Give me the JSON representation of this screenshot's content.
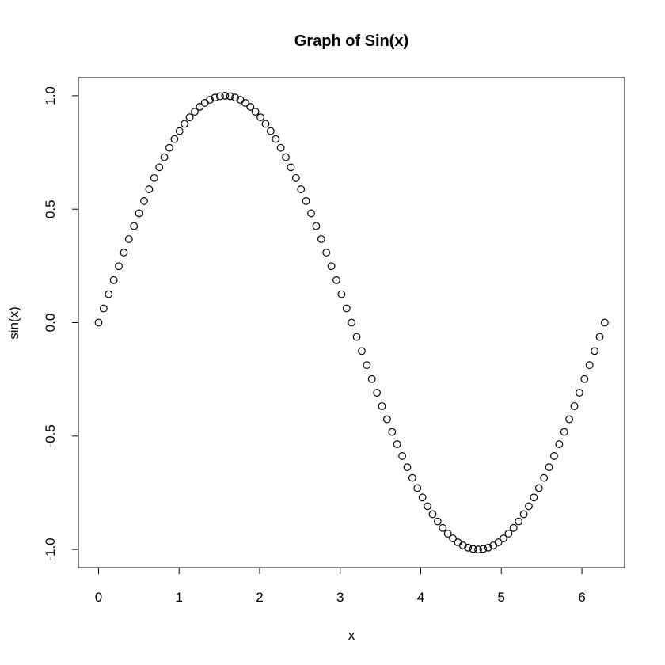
{
  "chart_data": {
    "type": "scatter",
    "title": "Graph of Sin(x)",
    "xlabel": "x",
    "ylabel": "sin(x)",
    "xlim": [
      -0.25,
      6.53
    ],
    "ylim": [
      -1.08,
      1.08
    ],
    "grid": false,
    "legend": "none",
    "x_ticks": [
      {
        "value": 0,
        "label": "0"
      },
      {
        "value": 1,
        "label": "1"
      },
      {
        "value": 2,
        "label": "2"
      },
      {
        "value": 3,
        "label": "3"
      },
      {
        "value": 4,
        "label": "4"
      },
      {
        "value": 5,
        "label": "5"
      },
      {
        "value": 6,
        "label": "6"
      }
    ],
    "y_ticks": [
      {
        "value": -1.0,
        "label": "-1.0"
      },
      {
        "value": -0.5,
        "label": "-0.5"
      },
      {
        "value": 0.0,
        "label": "0.0"
      },
      {
        "value": 0.5,
        "label": "0.5"
      },
      {
        "value": 1.0,
        "label": "1.0"
      }
    ],
    "series": [
      {
        "x": [
          0,
          0.0628,
          0.1257,
          0.1885,
          0.2513,
          0.3142,
          0.377,
          0.4398,
          0.5027,
          0.5655,
          0.6283,
          0.6912,
          0.754,
          0.8168,
          0.8796,
          0.9425,
          1.0053,
          1.0681,
          1.131,
          1.1938,
          1.2566,
          1.3195,
          1.3823,
          1.4451,
          1.508,
          1.5708,
          1.6336,
          1.6965,
          1.7593,
          1.8221,
          1.885,
          1.9478,
          2.0106,
          2.0735,
          2.1363,
          2.1991,
          2.2619,
          2.3248,
          2.3876,
          2.4504,
          2.5133,
          2.5761,
          2.6389,
          2.7018,
          2.7646,
          2.8274,
          2.8903,
          2.9531,
          3.0159,
          3.0788,
          3.1416,
          3.2044,
          3.2673,
          3.3301,
          3.3929,
          3.4558,
          3.5186,
          3.5814,
          3.6442,
          3.7071,
          3.7699,
          3.8327,
          3.8956,
          3.9584,
          4.0212,
          4.0841,
          4.1469,
          4.2097,
          4.2726,
          4.3354,
          4.3982,
          4.4611,
          4.5239,
          4.5867,
          4.6496,
          4.7124,
          4.7752,
          4.8381,
          4.9009,
          4.9637,
          5.0265,
          5.0894,
          5.1522,
          5.215,
          5.2779,
          5.3407,
          5.4035,
          5.4664,
          5.5292,
          5.592,
          5.6549,
          5.7177,
          5.7805,
          5.8434,
          5.9062,
          5.969,
          6.0319,
          6.0947,
          6.1575,
          6.2204,
          6.2832
        ],
        "y": [
          0,
          0.0628,
          0.1253,
          0.1874,
          0.2487,
          0.309,
          0.3681,
          0.4258,
          0.4818,
          0.5358,
          0.5878,
          0.6374,
          0.6845,
          0.729,
          0.7705,
          0.809,
          0.8443,
          0.8763,
          0.9048,
          0.9298,
          0.9511,
          0.9686,
          0.9823,
          0.9921,
          0.998,
          1,
          0.998,
          0.9921,
          0.9823,
          0.9686,
          0.9511,
          0.9298,
          0.9048,
          0.8763,
          0.8443,
          0.809,
          0.7705,
          0.729,
          0.6845,
          0.6374,
          0.5878,
          0.5358,
          0.4818,
          0.4258,
          0.3681,
          0.309,
          0.2487,
          0.1874,
          0.1253,
          0.0628,
          0,
          -0.0628,
          -0.1253,
          -0.1874,
          -0.2487,
          -0.309,
          -0.3681,
          -0.4258,
          -0.4818,
          -0.5358,
          -0.5878,
          -0.6374,
          -0.6845,
          -0.729,
          -0.7705,
          -0.809,
          -0.8443,
          -0.8763,
          -0.9048,
          -0.9298,
          -0.9511,
          -0.9686,
          -0.9823,
          -0.9921,
          -0.998,
          -1,
          -0.998,
          -0.9921,
          -0.9823,
          -0.9686,
          -0.9511,
          -0.9298,
          -0.9048,
          -0.8763,
          -0.8443,
          -0.809,
          -0.7705,
          -0.729,
          -0.6845,
          -0.6374,
          -0.5878,
          -0.5358,
          -0.4818,
          -0.4258,
          -0.3681,
          -0.309,
          -0.2487,
          -0.1874,
          -0.1253,
          -0.0628,
          0
        ],
        "marker": "open-circle",
        "color": "#000000"
      }
    ]
  }
}
